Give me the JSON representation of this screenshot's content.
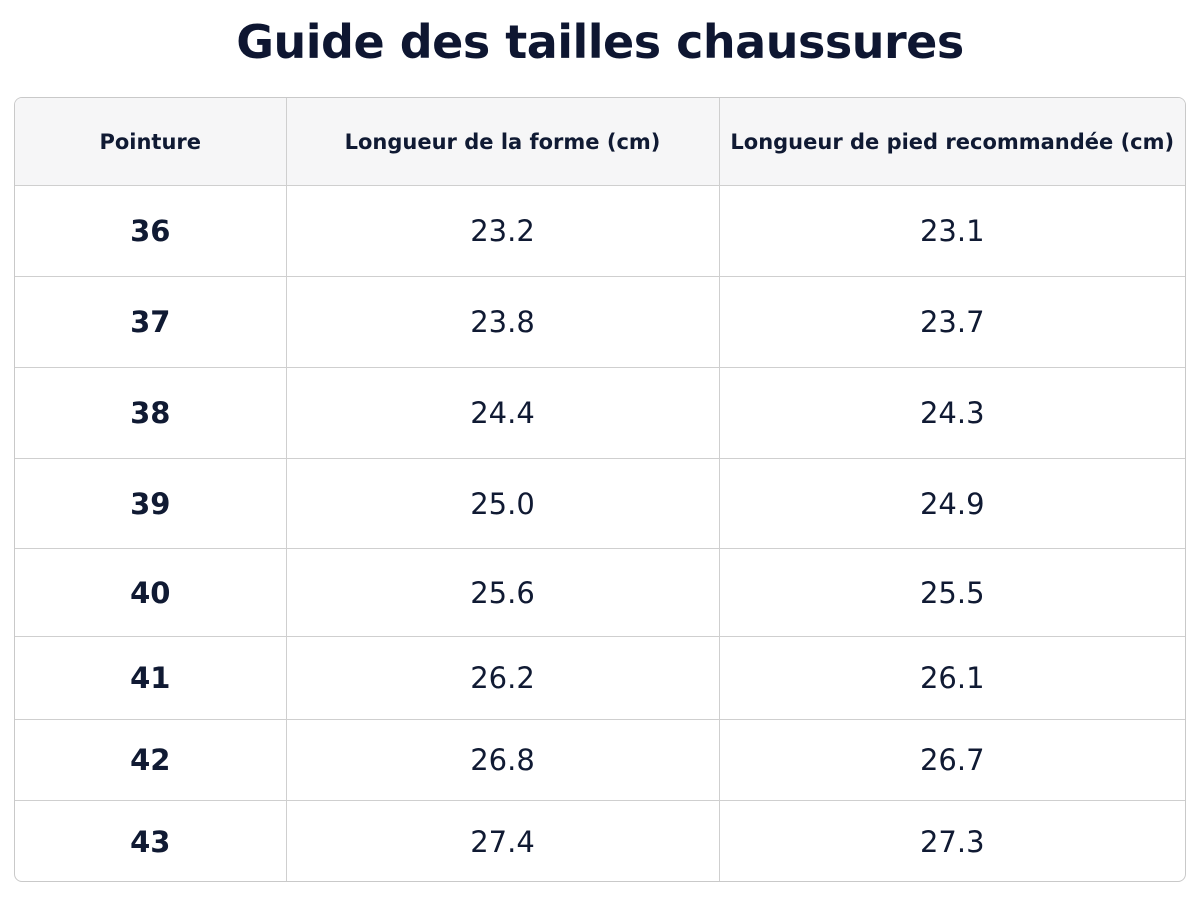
{
  "header": {
    "title": "Guide des tailles chaussures"
  },
  "table": {
    "columns": [
      "Pointure",
      "Longueur de la forme (cm)",
      "Longueur de pied recommandée (cm)"
    ],
    "rows": [
      [
        "36",
        "23.2",
        "23.1"
      ],
      [
        "37",
        "23.8",
        "23.7"
      ],
      [
        "38",
        "24.4",
        "24.3"
      ],
      [
        "39",
        "25.0",
        "24.9"
      ],
      [
        "40",
        "25.6",
        "25.5"
      ],
      [
        "41",
        "26.2",
        "26.1"
      ],
      [
        "42",
        "26.8",
        "26.7"
      ],
      [
        "43",
        "27.4",
        "27.3"
      ]
    ]
  }
}
